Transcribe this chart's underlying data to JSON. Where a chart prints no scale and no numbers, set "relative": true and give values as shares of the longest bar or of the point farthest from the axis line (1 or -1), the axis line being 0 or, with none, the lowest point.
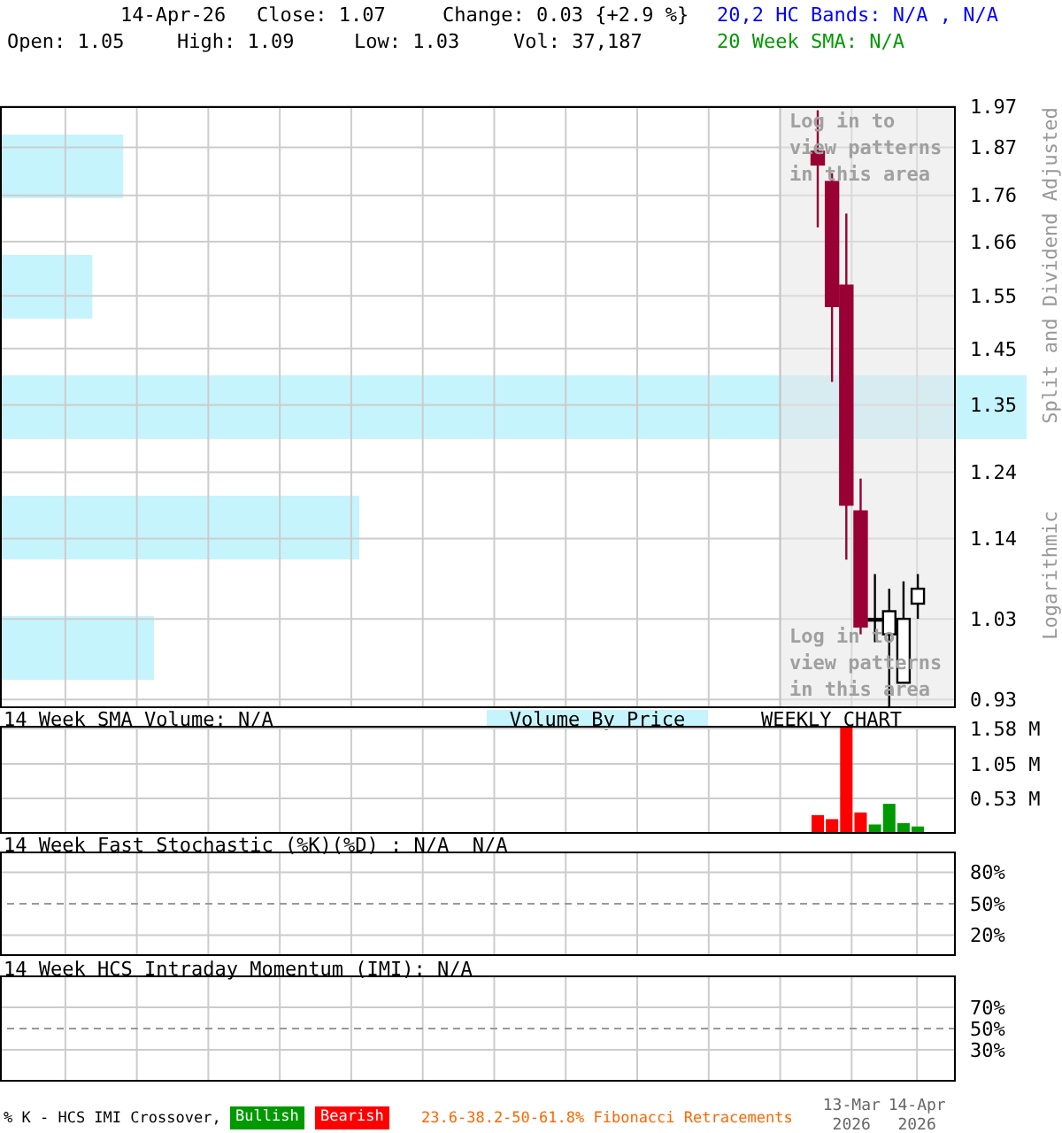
{
  "chart_data": [
    {
      "type": "candlestick",
      "ylabel": "Split and Dividend Adjusted",
      "x": [
        "2026-02-24",
        "2026-03-03",
        "2026-03-10",
        "2026-03-17",
        "2026-03-24",
        "2026-03-31",
        "2026-04-07",
        "2026-04-14"
      ],
      "ohlc": [
        [
          1.86,
          1.96,
          1.69,
          1.83
        ],
        [
          1.79,
          1.81,
          1.39,
          1.53
        ],
        [
          1.57,
          1.72,
          1.11,
          1.19
        ],
        [
          1.18,
          1.23,
          1.01,
          1.02
        ],
        [
          1.03,
          1.09,
          1.0,
          1.03
        ],
        [
          1.01,
          1.07,
          0.92,
          1.04
        ],
        [
          0.95,
          1.08,
          0.95,
          1.03
        ],
        [
          1.05,
          1.09,
          1.03,
          1.07
        ]
      ],
      "colors": [
        "#990033",
        "#990033",
        "#990033",
        "#990033",
        "#000000",
        "#000000",
        "#000000",
        "#000000"
      ],
      "xlim": [
        "2025-01-20",
        "2026-05-03"
      ],
      "xticks": [
        {
          "value": "2025-02-21",
          "label": null
        },
        {
          "value": "2025-03-28",
          "label": null
        },
        {
          "value": "2025-05-02",
          "label": null
        },
        {
          "value": "2025-06-06",
          "label": null
        },
        {
          "value": "2025-07-11",
          "label": null
        },
        {
          "value": "2025-08-15",
          "label": null
        },
        {
          "value": "2025-09-19",
          "label": null
        },
        {
          "value": "2025-10-24",
          "label": null
        },
        {
          "value": "2025-11-28",
          "label": null
        },
        {
          "value": "2026-01-02",
          "label": null
        },
        {
          "value": "2026-02-06",
          "label": null
        },
        {
          "value": "2026-03-13",
          "label": null
        },
        {
          "value": "2026-04-14",
          "label": null
        }
      ],
      "ylim": [
        0.92,
        1.97
      ],
      "yticks": [
        0.93,
        1.03,
        1.14,
        1.24,
        1.35,
        1.45,
        1.55,
        1.66,
        1.76,
        1.87,
        1.97
      ],
      "log": true,
      "grid": true,
      "tick_labels": "y",
      "bands": [
        {
          "axis": "x",
          "from": "2026-02-06",
          "to": "2026-05-03",
          "color": "#e6e6e6"
        }
      ],
      "annotations": [
        "14-Apr-26",
        "Close: 1.07",
        "Change: 0.03 {+2.9 %}",
        "20,2 HC Bands: N/A , N/A",
        "Open: 1.05",
        "High: 1.09",
        "Low: 1.03",
        "Vol: 37,187",
        "20 Week SMA: N/A",
        "Log in to view patterns in this area",
        "Log in to view patterns in this area",
        "Logarithmic"
      ]
    },
    {
      "type": "bar",
      "orientation": "horizontal",
      "title": "Volume By Price",
      "relative": true,
      "categories": [
        null,
        null,
        null,
        null,
        null
      ],
      "values": [
        0.12,
        0.09,
        1,
        0.35,
        0.15
      ],
      "color": "#c6f4fc",
      "tick_labels": false
    },
    {
      "type": "bar",
      "title": "14 Week SMA Volume: N/A",
      "x": [
        "2026-02-24",
        "2026-03-03",
        "2026-03-10",
        "2026-03-17",
        "2026-03-24",
        "2026-03-31",
        "2026-04-07",
        "2026-04-14"
      ],
      "values": [
        0.28,
        0.22,
        1.61,
        0.32,
        0.14,
        0.45,
        0.16,
        0.11
      ],
      "colors": [
        "#ff0000",
        "#ff0000",
        "#ff0000",
        "#ff0000",
        "#009900",
        "#009900",
        "#009900",
        "#009900"
      ],
      "xlim": [
        "2025-01-20",
        "2026-05-03"
      ],
      "xticks": [
        {
          "value": "2025-02-21",
          "label": null
        },
        {
          "value": "2025-03-28",
          "label": null
        },
        {
          "value": "2025-05-02",
          "label": null
        },
        {
          "value": "2025-06-06",
          "label": null
        },
        {
          "value": "2025-07-11",
          "label": null
        },
        {
          "value": "2025-08-15",
          "label": null
        },
        {
          "value": "2025-09-19",
          "label": null
        },
        {
          "value": "2025-10-24",
          "label": null
        },
        {
          "value": "2025-11-28",
          "label": null
        },
        {
          "value": "2026-01-02",
          "label": null
        },
        {
          "value": "2026-02-06",
          "label": null
        },
        {
          "value": "2026-03-13",
          "label": null
        },
        {
          "value": "2026-04-14",
          "label": null
        }
      ],
      "ylim": [
        0,
        1.62
      ],
      "yticks": [
        {
          "value": 0.53,
          "label": "0.53 M"
        },
        {
          "value": 1.05,
          "label": "1.05 M"
        },
        {
          "value": 1.58,
          "label": "1.58 M"
        }
      ],
      "grid": true,
      "tick_labels": "y",
      "annotations": [
        "WEEKLY CHART"
      ]
    },
    {
      "type": "line",
      "title": "14 Week Fast Stochastic (%K)(%D) : N/A  N/A",
      "xlim": [
        "2025-01-20",
        "2026-05-03"
      ],
      "xticks": [
        {
          "value": "2025-02-21",
          "label": null
        },
        {
          "value": "2025-03-28",
          "label": null
        },
        {
          "value": "2025-05-02",
          "label": null
        },
        {
          "value": "2025-06-06",
          "label": null
        },
        {
          "value": "2025-07-11",
          "label": null
        },
        {
          "value": "2025-08-15",
          "label": null
        },
        {
          "value": "2025-09-19",
          "label": null
        },
        {
          "value": "2025-10-24",
          "label": null
        },
        {
          "value": "2025-11-28",
          "label": null
        },
        {
          "value": "2026-01-02",
          "label": null
        },
        {
          "value": "2026-02-06",
          "label": null
        },
        {
          "value": "2026-03-13",
          "label": null
        },
        {
          "value": "2026-04-14",
          "label": null
        }
      ],
      "ylim": [
        0,
        100
      ],
      "yticks": [
        {
          "value": 20,
          "label": "20%"
        },
        {
          "value": 50,
          "label": "50%"
        },
        {
          "value": 80,
          "label": "80%"
        }
      ],
      "grid": true,
      "tick_labels": "y",
      "ref_lines": [
        {
          "axis": "y",
          "value": 50,
          "line_style": "dashed",
          "color": "#999999"
        }
      ]
    },
    {
      "type": "line",
      "title": "14 Week HCS Intraday Momentum (IMI): N/A",
      "xlim": [
        "2025-01-20",
        "2026-05-03"
      ],
      "xticks": [
        {
          "value": "2025-02-21",
          "label": null
        },
        {
          "value": "2025-03-28",
          "label": null
        },
        {
          "value": "2025-05-02",
          "label": null
        },
        {
          "value": "2025-06-06",
          "label": null
        },
        {
          "value": "2025-07-11",
          "label": null
        },
        {
          "value": "2025-08-15",
          "label": null
        },
        {
          "value": "2025-09-19",
          "label": null
        },
        {
          "value": "2025-10-24",
          "label": null
        },
        {
          "value": "2025-11-28",
          "label": null
        },
        {
          "value": "2026-01-02",
          "label": null
        },
        {
          "value": "2026-02-06",
          "label": null
        },
        {
          "value": "2026-03-13",
          "label": "13-Mar 2026"
        },
        {
          "value": "2026-04-14",
          "label": "14-Apr 2026"
        }
      ],
      "ylim": [
        0,
        100
      ],
      "yticks": [
        {
          "value": 30,
          "label": "30%"
        },
        {
          "value": 50,
          "label": "50%"
        },
        {
          "value": 70,
          "label": "70%"
        }
      ],
      "grid": true,
      "ref_lines": [
        {
          "axis": "y",
          "value": 50,
          "line_style": "dashed",
          "color": "#999999"
        }
      ],
      "annotations": [
        "% K - HCS IMI Crossover,",
        "Bullish",
        "Bearish",
        "23.6-38.2-50-61.8% Fibonacci Retracements"
      ]
    }
  ]
}
